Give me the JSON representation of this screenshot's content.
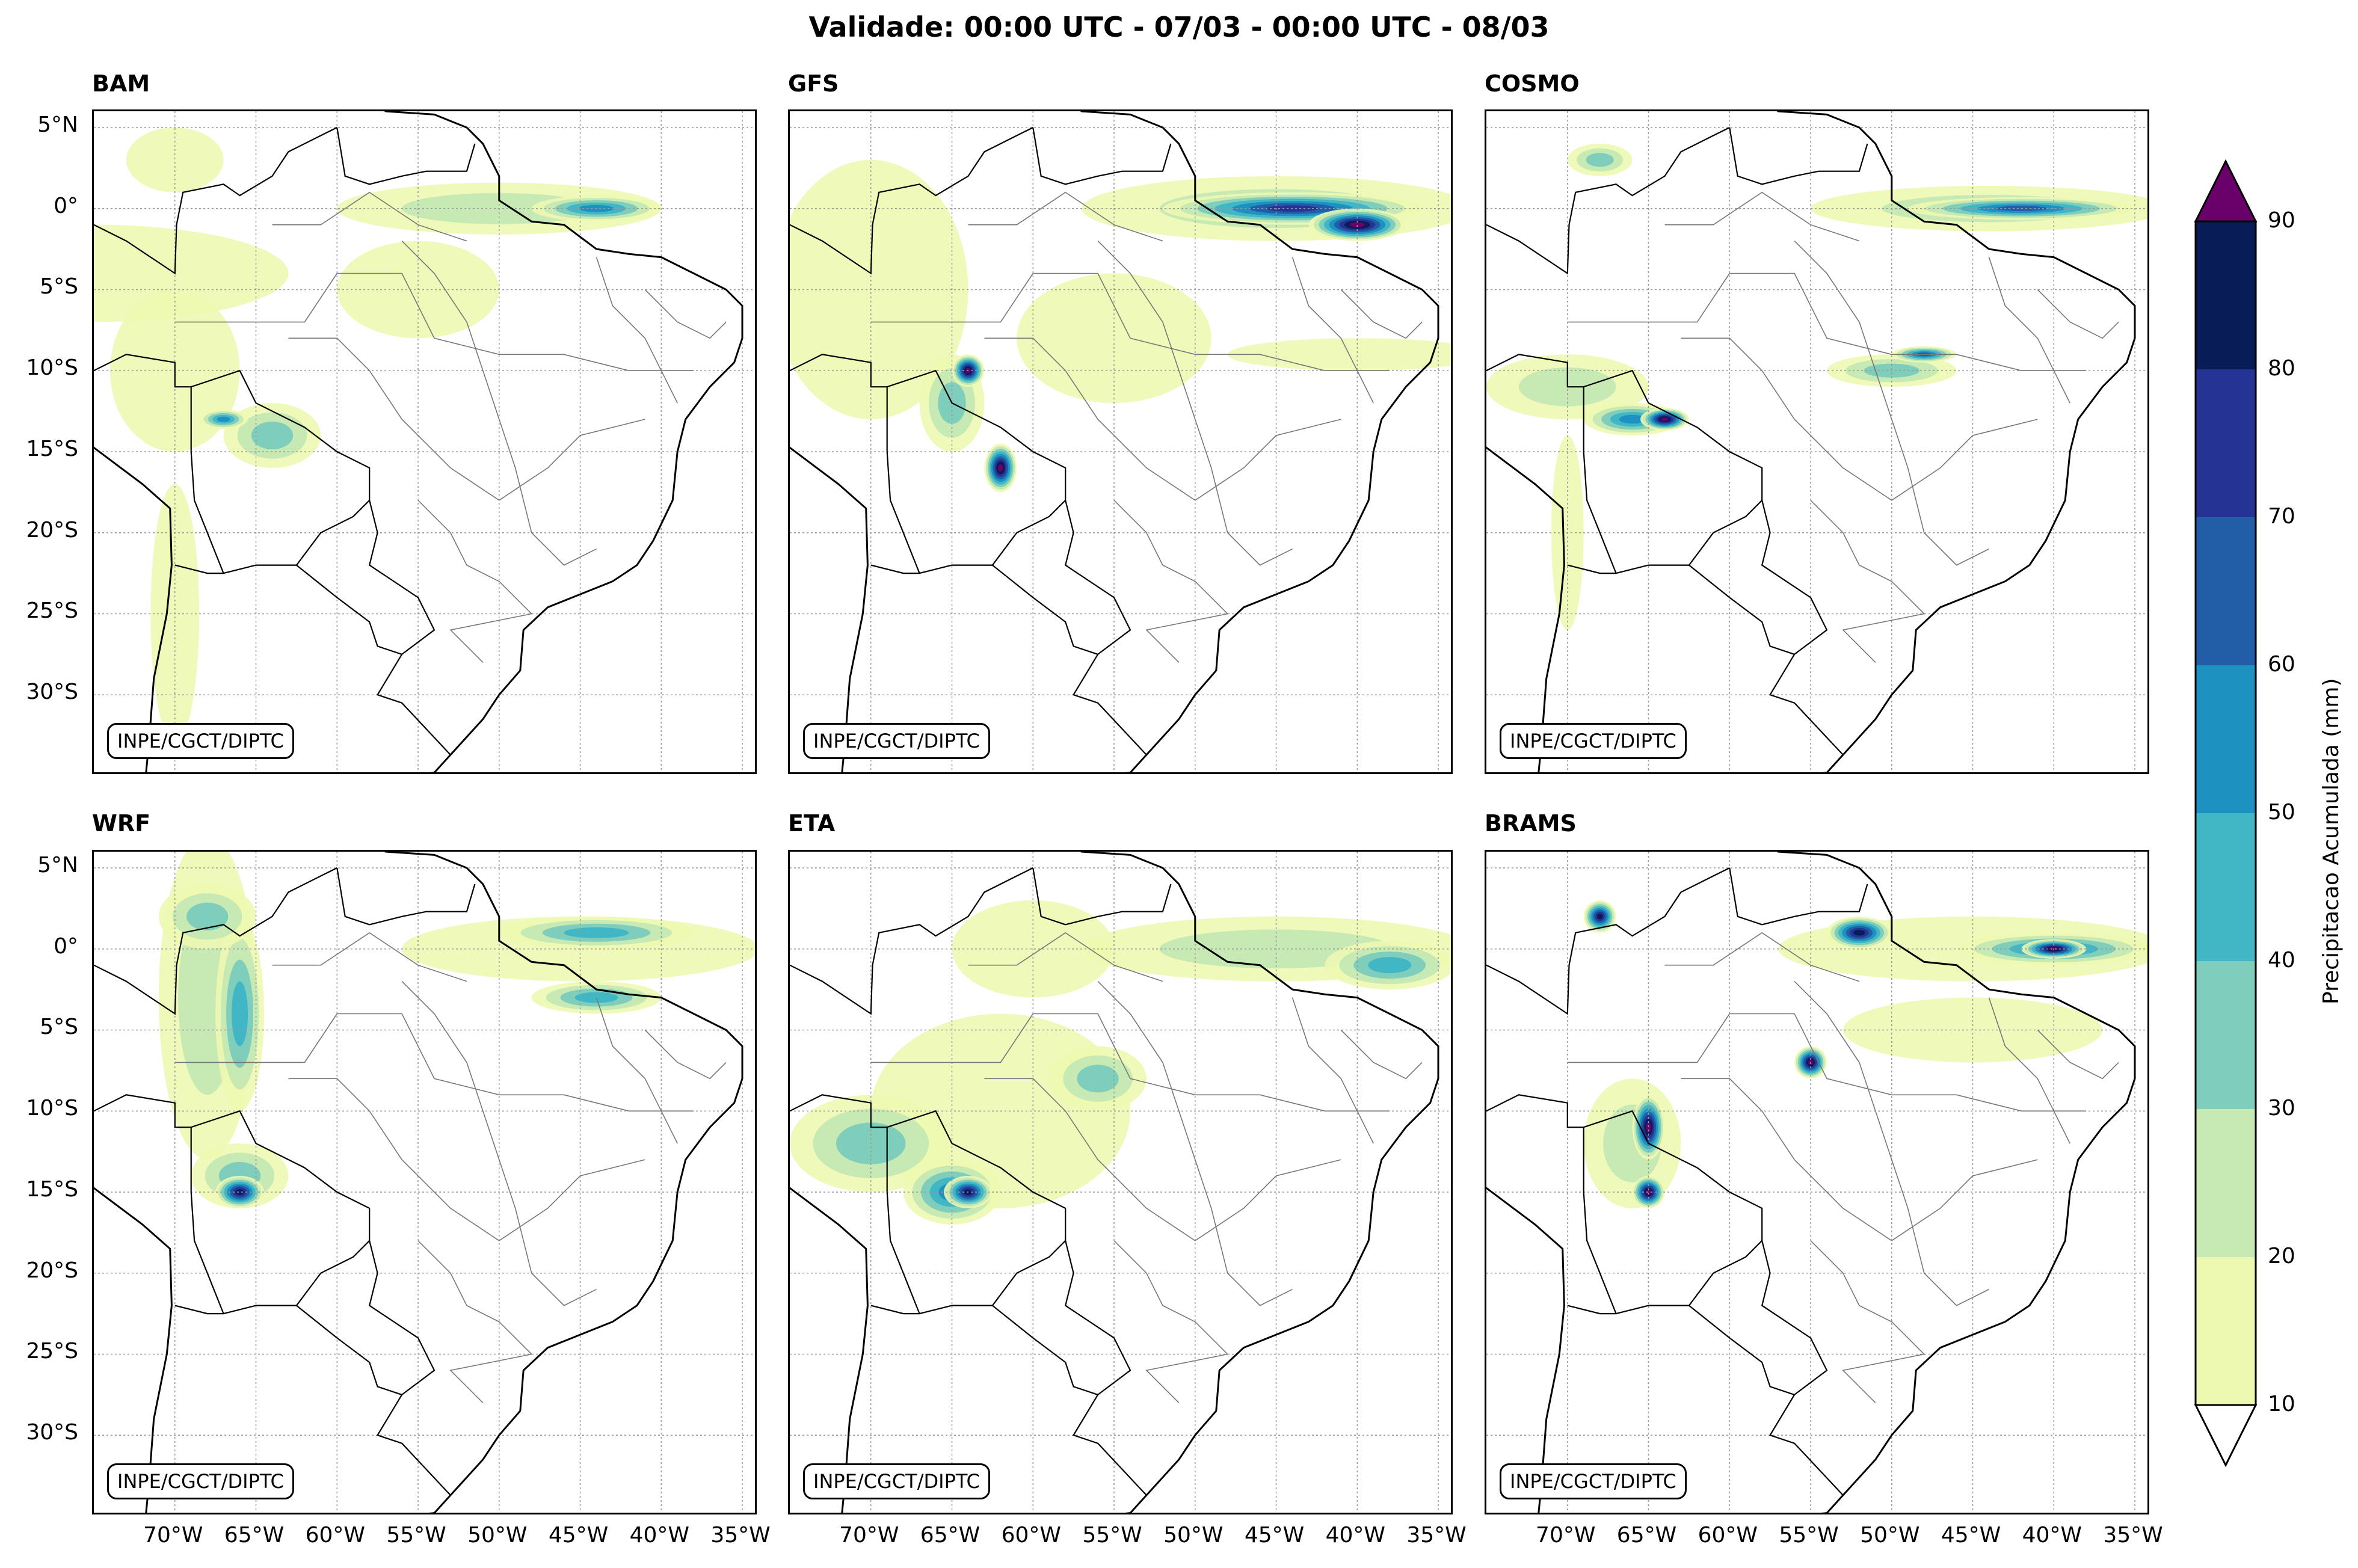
{
  "title": "Validade: 00:00 UTC - 07/03 - 00:00 UTC - 08/03",
  "credit": "INPE/CGCT/DIPTC",
  "panels": [
    {
      "name": "BAM"
    },
    {
      "name": "GFS"
    },
    {
      "name": "COSMO"
    },
    {
      "name": "WRF"
    },
    {
      "name": "ETA"
    },
    {
      "name": "BRAMS"
    }
  ],
  "axes": {
    "lat_ticks": [
      "5°N",
      "0°",
      "5°S",
      "10°S",
      "15°S",
      "20°S",
      "25°S",
      "30°S"
    ],
    "lon_ticks": [
      "70°W",
      "65°W",
      "60°W",
      "55°W",
      "50°W",
      "45°W",
      "40°W",
      "35°W"
    ],
    "lon_range": [
      -75,
      -34
    ],
    "lat_range": [
      -35,
      6
    ]
  },
  "colorbar": {
    "label": "Precipitacao Acumulada (mm)",
    "levels": [
      "10",
      "20",
      "30",
      "40",
      "50",
      "60",
      "70",
      "80",
      "90"
    ],
    "colors": [
      "#edf8b1",
      "#c7e9b4",
      "#7fcdbb",
      "#41b6c4",
      "#1d91c0",
      "#225ea8",
      "#253494",
      "#081d58"
    ],
    "over_color": "#6a006a",
    "under_color": "#ffffff"
  },
  "blobs": {
    "BAM": [
      [
        -75,
        -4,
        12,
        3,
        0
      ],
      [
        -50,
        0,
        10,
        1.6,
        1
      ],
      [
        -44,
        0,
        4,
        0.8,
        4
      ],
      [
        -70,
        -10,
        4,
        5,
        0
      ],
      [
        -64,
        -14,
        3,
        2,
        2
      ],
      [
        -67,
        -13,
        1.5,
        0.6,
        4
      ],
      [
        -70,
        3,
        3,
        2,
        0
      ],
      [
        -55,
        -5,
        5,
        3,
        0
      ],
      [
        -70,
        -25,
        1.5,
        8,
        0
      ]
    ],
    "GFS": [
      [
        -70,
        -5,
        6,
        8,
        0
      ],
      [
        -45,
        0,
        12,
        2,
        1
      ],
      [
        -44,
        0,
        8,
        1,
        6
      ],
      [
        -40,
        -1,
        3,
        1,
        8
      ],
      [
        -65,
        -12,
        2,
        3,
        2
      ],
      [
        -64,
        -10,
        1,
        1,
        8
      ],
      [
        -62,
        -16,
        1,
        1.5,
        8
      ],
      [
        -55,
        -8,
        6,
        4,
        0
      ],
      [
        -40,
        -9,
        8,
        1,
        0
      ]
    ],
    "COSMO": [
      [
        -44,
        0,
        11,
        1.4,
        1
      ],
      [
        -42,
        0,
        7,
        0.7,
        5
      ],
      [
        -70,
        -11,
        5,
        2,
        1
      ],
      [
        -66,
        -13,
        3,
        1,
        4
      ],
      [
        -64,
        -13,
        1.5,
        0.7,
        8
      ],
      [
        -50,
        -10,
        4,
        1,
        2
      ],
      [
        -48,
        -9,
        2,
        0.5,
        5
      ],
      [
        -68,
        3,
        2,
        1,
        2
      ],
      [
        -70,
        -20,
        1,
        6,
        0
      ]
    ],
    "WRF": [
      [
        -68,
        -3,
        3,
        10,
        1
      ],
      [
        -66,
        -4,
        1.5,
        6,
        3
      ],
      [
        -66,
        -14,
        3,
        2,
        2
      ],
      [
        -66,
        -15,
        1.5,
        1,
        7
      ],
      [
        -45,
        0,
        11,
        2,
        0
      ],
      [
        -44,
        1,
        6,
        1,
        3
      ],
      [
        -44,
        -3,
        4,
        1,
        3
      ],
      [
        -68,
        2,
        3,
        2,
        2
      ]
    ],
    "ETA": [
      [
        -62,
        -10,
        8,
        6,
        0
      ],
      [
        -70,
        -12,
        5,
        3,
        2
      ],
      [
        -65,
        -15,
        3,
        2,
        4
      ],
      [
        -64,
        -15,
        1.5,
        1,
        7
      ],
      [
        -56,
        -8,
        3,
        2,
        2
      ],
      [
        -45,
        0,
        12,
        2,
        1
      ],
      [
        -38,
        -1,
        4,
        1.5,
        3
      ],
      [
        -60,
        0,
        5,
        3,
        0
      ]
    ],
    "BRAMS": [
      [
        -66,
        -12,
        3,
        4,
        1
      ],
      [
        -65,
        -11,
        1,
        2,
        8
      ],
      [
        -65,
        -15,
        1,
        1,
        8
      ],
      [
        -45,
        0,
        12,
        2,
        0
      ],
      [
        -40,
        0,
        6,
        1,
        4
      ],
      [
        -40,
        0,
        2,
        0.6,
        8
      ],
      [
        -52,
        1,
        2,
        1,
        7
      ],
      [
        -55,
        -7,
        1,
        1,
        8
      ],
      [
        -45,
        -5,
        8,
        2,
        0
      ],
      [
        -68,
        2,
        1,
        1,
        7
      ]
    ]
  }
}
